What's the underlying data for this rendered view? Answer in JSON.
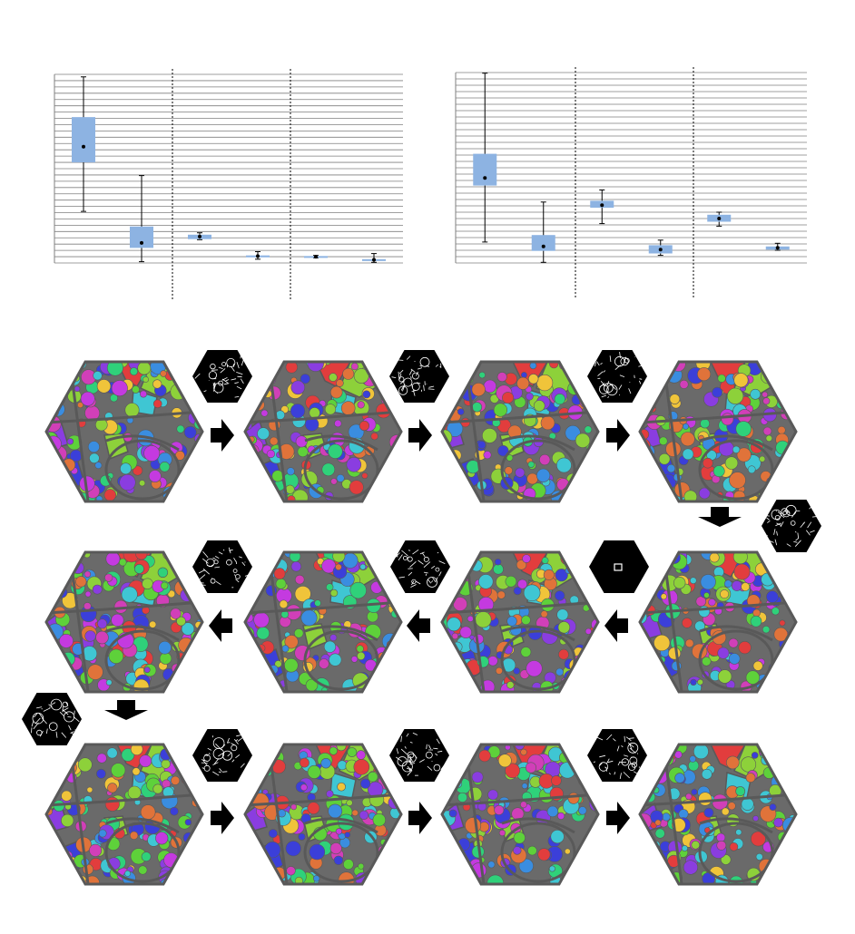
{
  "colors": {
    "box_fill": "#8db3e2",
    "grid": "#7f7f7f",
    "whisker": "#000000",
    "mean_marker": "#000000",
    "hex_border": "#595959",
    "arrow": "#000000",
    "diff_background": "#000000",
    "diff_lines": "#ffffff",
    "palette": [
      "#e23d3d",
      "#8dd13a",
      "#3fc6d3",
      "#8a3de0",
      "#3b3fd9",
      "#2fd17a",
      "#d13fb8",
      "#f0c43a",
      "#3a8de0",
      "#e0733a",
      "#5ed13a",
      "#c43ae0"
    ]
  },
  "chart_data": [
    {
      "type": "box",
      "title": "",
      "xlabel": "",
      "ylabel": "",
      "ylim": [
        0,
        30
      ],
      "grid": true,
      "groups": 3,
      "boxes": [
        {
          "group": 1,
          "min": 8.2,
          "q1": 16.0,
          "median": 18.5,
          "q3": 23.2,
          "max": 29.6
        },
        {
          "group": 1,
          "min": 0.2,
          "q1": 2.4,
          "median": 3.2,
          "q3": 5.8,
          "max": 13.9
        },
        {
          "group": 2,
          "min": 3.7,
          "q1": 3.8,
          "median": 4.2,
          "q3": 4.5,
          "max": 4.8
        },
        {
          "group": 2,
          "min": 0.6,
          "q1": 0.9,
          "median": 1.1,
          "q3": 1.2,
          "max": 1.8
        },
        {
          "group": 3,
          "min": 0.8,
          "q1": 0.9,
          "median": 1.0,
          "q3": 1.1,
          "max": 1.2
        },
        {
          "group": 3,
          "min": 0.1,
          "q1": 0.4,
          "median": 0.5,
          "q3": 0.6,
          "max": 1.5
        }
      ]
    },
    {
      "type": "box",
      "title": "",
      "xlabel": "",
      "ylabel": "",
      "ylim": [
        0,
        30
      ],
      "grid": true,
      "groups": 3,
      "boxes": [
        {
          "group": 1,
          "min": 3.3,
          "q1": 12.2,
          "median": 13.4,
          "q3": 17.2,
          "max": 29.9
        },
        {
          "group": 1,
          "min": 0.1,
          "q1": 1.9,
          "median": 2.6,
          "q3": 4.4,
          "max": 9.6
        },
        {
          "group": 2,
          "min": 6.2,
          "q1": 8.7,
          "median": 9.1,
          "q3": 9.8,
          "max": 11.5
        },
        {
          "group": 2,
          "min": 1.2,
          "q1": 1.5,
          "median": 2.1,
          "q3": 2.8,
          "max": 3.6
        },
        {
          "group": 3,
          "min": 5.8,
          "q1": 6.5,
          "median": 7.0,
          "q3": 7.6,
          "max": 8.0
        },
        {
          "group": 3,
          "min": 2.0,
          "q1": 2.1,
          "median": 2.4,
          "q3": 2.6,
          "max": 3.1
        }
      ]
    }
  ],
  "sequence": {
    "rows": [
      {
        "direction": "right",
        "frames": 4
      },
      {
        "direction": "left",
        "frames": 4
      },
      {
        "direction": "right",
        "frames": 4
      }
    ],
    "diff_icons": [
      "diff-1-2",
      "diff-2-3",
      "diff-3-4",
      "diff-4-5",
      "diff-5-6",
      "diff-6-7",
      "diff-7-8",
      "diff-8-9",
      "diff-9-10",
      "diff-10-11",
      "diff-11-12"
    ],
    "arrow_icons": [
      "arrow-right-icon",
      "arrow-down-icon",
      "arrow-left-icon"
    ]
  }
}
